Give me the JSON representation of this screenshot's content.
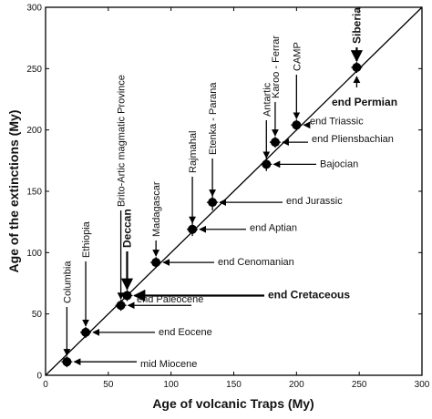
{
  "chart_data": {
    "type": "scatter",
    "title": "",
    "xlabel": "Age of volcanic Traps (My)",
    "ylabel": "Age of the extinctions (My)",
    "xlim": [
      0,
      300
    ],
    "ylim": [
      0,
      300
    ],
    "xticks": [
      "0",
      "50",
      "100",
      "150",
      "200",
      "250",
      "300"
    ],
    "yticks": [
      "0",
      "50",
      "100",
      "150",
      "200",
      "250",
      "300"
    ],
    "x_tick_values": [
      0,
      50,
      100,
      150,
      200,
      250,
      300
    ],
    "y_tick_values": [
      0,
      50,
      100,
      150,
      200,
      250,
      300
    ],
    "grid": false,
    "reference_line": {
      "from": [
        0,
        0
      ],
      "to": [
        300,
        300
      ]
    },
    "points": [
      {
        "x": 17,
        "y": 11,
        "xerr": 1,
        "yerr": 2,
        "trap": "Columbia",
        "extinction": "mid Miocene"
      },
      {
        "x": 32,
        "y": 35,
        "xerr": 1,
        "yerr": 2,
        "trap": "Ethiopia",
        "extinction": "end Eocene"
      },
      {
        "x": 60,
        "y": 57,
        "xerr": 1,
        "yerr": 2,
        "trap": "Brito-Artic magmatic Province",
        "extinction": "end Paleocene"
      },
      {
        "x": 65,
        "y": 65,
        "xerr": 1,
        "yerr": 1,
        "trap": "Deccan",
        "extinction": "end Cretaceous"
      },
      {
        "x": 88,
        "y": 92,
        "xerr": 2,
        "yerr": 2,
        "trap": "Madagascar",
        "extinction": "end Cenomanian"
      },
      {
        "x": 117,
        "y": 119,
        "xerr": 2,
        "yerr": 4,
        "trap": "Rajmahal",
        "extinction": "end Aptian"
      },
      {
        "x": 133,
        "y": 141,
        "xerr": 3,
        "yerr": 5,
        "trap": "Etenka - Parana",
        "extinction": "end Jurassic"
      },
      {
        "x": 176,
        "y": 172,
        "xerr": 2,
        "yerr": 4,
        "trap": "Antartic",
        "extinction": "Bajocian"
      },
      {
        "x": 183,
        "y": 190,
        "xerr": 1,
        "yerr": 3,
        "trap": "Karoo - Ferrar",
        "extinction": "end Pliensbachian"
      },
      {
        "x": 200,
        "y": 204,
        "xerr": 1,
        "yerr": 2,
        "trap": "CAMP",
        "extinction": "end Triassic"
      },
      {
        "x": 248,
        "y": 251,
        "xerr": 2,
        "yerr": 2,
        "trap": "Siberia",
        "extinction": "end Permian"
      }
    ]
  }
}
